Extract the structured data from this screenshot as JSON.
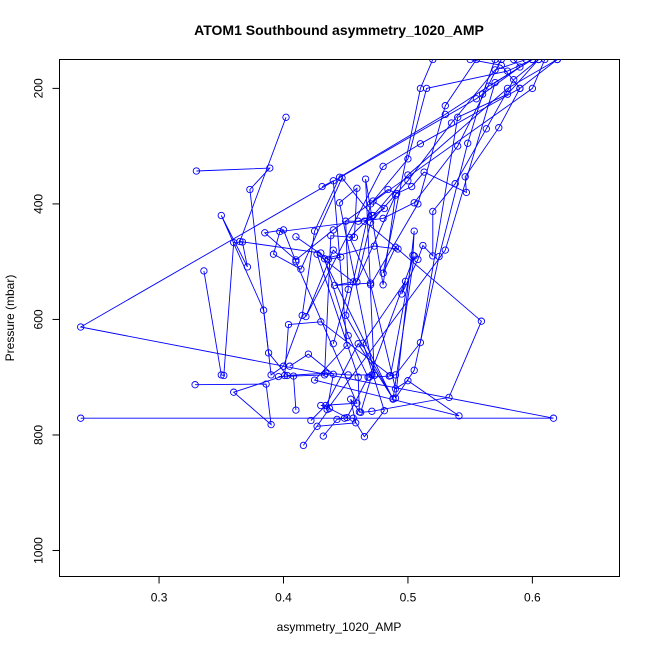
{
  "chart_data": {
    "type": "line",
    "title": "ATOM1 Southbound asymmetry_1020_AMP",
    "xlabel": "asymmetry_1020_AMP",
    "ylabel": "Pressure (mbar)",
    "xlim": [
      0.22,
      0.67
    ],
    "ylim": [
      1045,
      150
    ],
    "y_reversed": true,
    "x_ticks": [
      0.3,
      0.4,
      0.5,
      0.6
    ],
    "y_ticks": [
      200,
      400,
      600,
      800,
      1000
    ],
    "grid": false,
    "legend": "none",
    "series_color": "#0000ff",
    "marker": "open-circle",
    "series": [
      {
        "x": [
          0.416,
          0.437,
          0.451,
          0.468,
          0.452,
          0.433,
          0.473,
          0.492,
          0.465,
          0.481,
          0.472,
          0.484,
          0.491,
          0.503,
          0.513,
          0.547,
          0.546,
          0.573,
          0.59,
          0.575,
          0.55
        ],
        "y": [
          818,
          754,
          770,
          700,
          628,
          495,
          473,
          478,
          430,
          408,
          395,
          375,
          382,
          370,
          345,
          380,
          353,
          268,
          200,
          160,
          150
        ]
      },
      {
        "x": [
          0.427,
          0.458,
          0.454,
          0.461,
          0.46,
          0.427,
          0.456,
          0.441,
          0.47,
          0.453,
          0.471,
          0.447,
          0.414,
          0.392,
          0.397,
          0.48,
          0.505,
          0.54,
          0.575
        ],
        "y": [
          785,
          779,
          738,
          760,
          700,
          487,
          535,
          541,
          537,
          458,
          420,
          355,
          513,
          487,
          448,
          425,
          398,
          300,
          150
        ]
      },
      {
        "x": [
          0.432,
          0.443,
          0.449,
          0.456,
          0.465,
          0.481,
          0.464,
          0.498,
          0.495,
          0.508,
          0.512,
          0.52,
          0.52,
          0.538,
          0.563,
          0.585,
          0.605
        ],
        "y": [
          802,
          773,
          771,
          771,
          803,
          758,
          641,
          534,
          556,
          496,
          472,
          490,
          413,
          365,
          270,
          185,
          150
        ]
      },
      {
        "x": [
          0.237,
          0.617,
          0.237,
          0.555,
          0.59,
          0.585
        ],
        "y": [
          771,
          771,
          613,
          218,
          163,
          150
        ]
      },
      {
        "x": [
          0.336,
          0.35,
          0.352,
          0.36,
          0.367,
          0.371,
          0.35,
          0.384,
          0.39,
          0.4,
          0.415,
          0.425,
          0.445,
          0.53,
          0.565,
          0.6
        ],
        "y": [
          516,
          696,
          697,
          467,
          466,
          509,
          420,
          584,
          696,
          681,
          593,
          447,
          354,
          245,
          196,
          150
        ]
      },
      {
        "x": [
          0.41,
          0.408,
          0.396,
          0.433,
          0.438,
          0.457,
          0.459,
          0.445,
          0.473,
          0.466,
          0.48,
          0.49,
          0.459,
          0.47,
          0.5,
          0.535,
          0.57,
          0.595
        ],
        "y": [
          757,
          698,
          699,
          696,
          455,
          458,
          373,
          398,
          697,
          357,
          540,
          385,
          535,
          432,
          360,
          260,
          168,
          150
        ]
      },
      {
        "x": [
          0.329,
          0.386,
          0.39,
          0.36,
          0.401,
          0.404,
          0.43,
          0.486,
          0.504,
          0.505,
          0.49,
          0.505,
          0.525,
          0.548,
          0.56,
          0.57
        ],
        "y": [
          713,
          712,
          782,
          726,
          697,
          609,
          604,
          697,
          489,
          447,
          736,
          688,
          491,
          295,
          210,
          150
        ]
      },
      {
        "x": [
          0.33,
          0.389,
          0.373,
          0.388,
          0.403,
          0.434,
          0.452,
          0.471,
          0.462,
          0.471,
          0.533,
          0.559,
          0.49,
          0.48,
          0.51,
          0.52
        ],
        "y": [
          343,
          338,
          375,
          658,
          697,
          693,
          696,
          696,
          761,
          759,
          735,
          603,
          475,
          520,
          200,
          150
        ]
      },
      {
        "x": [
          0.402,
          0.365,
          0.43,
          0.488,
          0.505,
          0.469,
          0.485,
          0.49,
          0.51,
          0.54,
          0.58,
          0.605
        ],
        "y": [
          250,
          465,
          485,
          738,
          490,
          700,
          698,
          696,
          640,
          250,
          210,
          150
        ]
      },
      {
        "x": [
          0.431,
          0.44,
          0.451,
          0.425,
          0.541,
          0.5,
          0.49,
          0.47,
          0.508,
          0.53,
          0.555
        ],
        "y": [
          370,
          360,
          645,
          705,
          767,
          706,
          720,
          540,
          400,
          230,
          150
        ]
      },
      {
        "x": [
          0.422,
          0.434,
          0.46,
          0.488,
          0.45,
          0.47,
          0.5,
          0.515,
          0.58,
          0.6
        ],
        "y": [
          775,
          749,
          642,
          737,
          593,
          400,
          322,
          200,
          170,
          150
        ]
      },
      {
        "x": [
          0.43,
          0.459,
          0.41,
          0.4,
          0.385,
          0.41,
          0.44,
          0.6,
          0.61
        ],
        "y": [
          749,
          745,
          500,
          445,
          450,
          497,
          445,
          200,
          150
        ]
      },
      {
        "x": [
          0.41,
          0.436,
          0.446,
          0.44,
          0.418,
          0.48,
          0.51,
          0.59,
          0.62
        ],
        "y": [
          457,
          496,
          492,
          480,
          595,
          335,
          296,
          200,
          150
        ]
      },
      {
        "x": [
          0.44,
          0.452,
          0.45,
          0.46,
          0.472,
          0.5,
          0.58,
          0.62
        ],
        "y": [
          642,
          548,
          430,
          430,
          420,
          350,
          200,
          150
        ]
      },
      {
        "x": [
          0.405,
          0.42,
          0.44,
          0.435,
          0.53,
          0.57,
          0.6
        ],
        "y": [
          681,
          660,
          695,
          756,
          480,
          190,
          150
        ]
      }
    ]
  }
}
